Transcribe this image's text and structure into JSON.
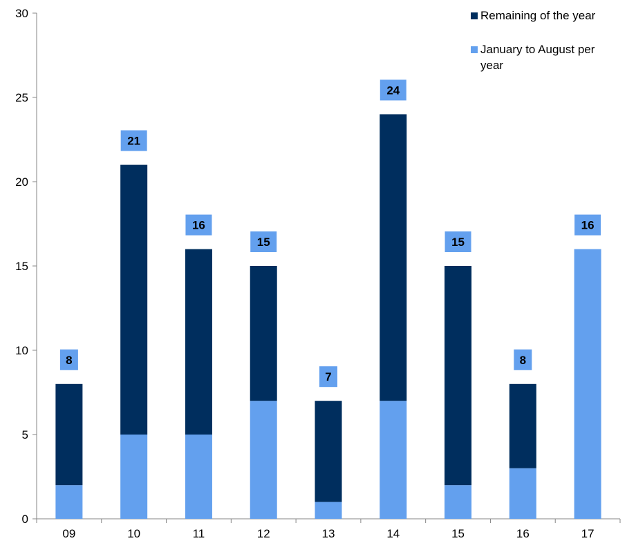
{
  "chart_data": {
    "type": "bar",
    "stacked": true,
    "categories": [
      "09",
      "10",
      "11",
      "12",
      "13",
      "14",
      "15",
      "16",
      "17"
    ],
    "series": [
      {
        "name": "January to August per year",
        "color": "#63a0ee",
        "values": [
          2,
          5,
          5,
          7,
          1,
          7,
          2,
          3,
          16
        ]
      },
      {
        "name": "Remaining of the year",
        "color": "#002e5e",
        "values": [
          6,
          16,
          11,
          8,
          6,
          17,
          13,
          5,
          0
        ]
      }
    ],
    "totals": [
      8,
      21,
      16,
      15,
      7,
      24,
      15,
      8,
      16
    ],
    "total_label_color": "#63a0ee",
    "ylim": [
      0,
      30
    ],
    "yticks": [
      0,
      5,
      10,
      15,
      20,
      25,
      30
    ],
    "legend_position": "top-right",
    "legend_entries": [
      {
        "label": "Remaining of the year",
        "color": "#002e5e"
      },
      {
        "label_lines": [
          "January to August per",
          "year"
        ],
        "color": "#63a0ee"
      }
    ],
    "grid": false
  }
}
